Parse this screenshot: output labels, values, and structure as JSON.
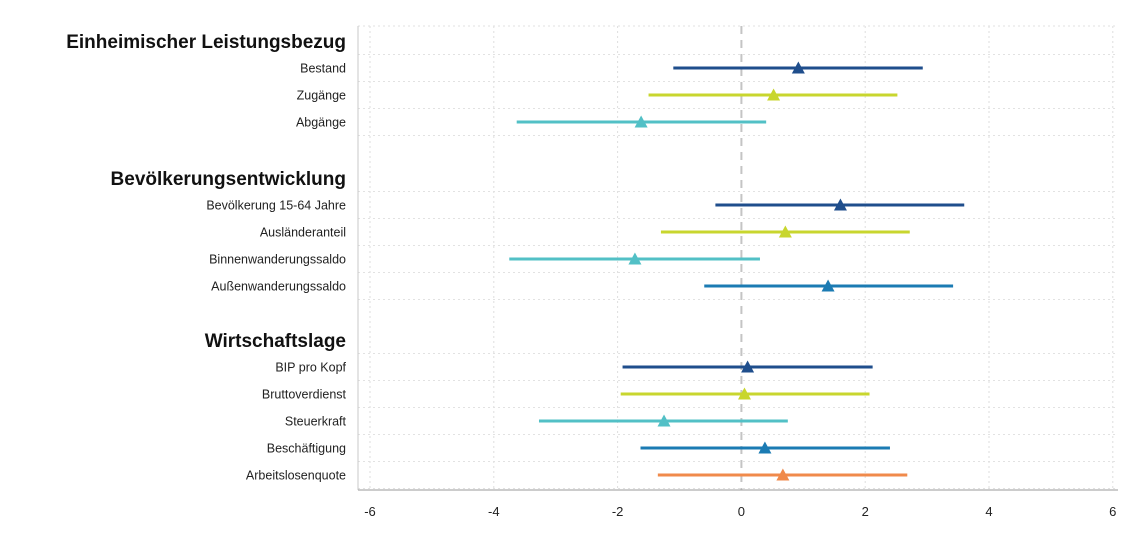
{
  "chart_data": {
    "type": "forest",
    "xlim": [
      -6.2,
      6.2
    ],
    "x_ticks": [
      -6,
      -4,
      -2,
      0,
      2,
      4,
      6
    ],
    "x_tick_labels": [
      "-6",
      "-4",
      "-2",
      "0",
      "2",
      "4",
      "6"
    ],
    "reference_line": 0,
    "grid": true,
    "colors": [
      "#1f4e8c",
      "#c8d62e",
      "#52c0c6",
      "#1b7bb3",
      "#f08a4b"
    ],
    "groups": [
      {
        "title": "Einheimischer Leistungsbezug",
        "rows": [
          {
            "label": "Bestand",
            "estimate": 0.92,
            "lower": -1.1,
            "upper": 2.93,
            "color_index": 0
          },
          {
            "label": "Zugänge",
            "estimate": 0.52,
            "lower": -1.5,
            "upper": 2.52,
            "color_index": 1
          },
          {
            "label": "Abgänge",
            "estimate": -1.62,
            "lower": -3.63,
            "upper": 0.4,
            "color_index": 2
          }
        ]
      },
      {
        "title": "Bevölkerungsentwicklung",
        "rows": [
          {
            "label": "Bevölkerung 15-64 Jahre",
            "estimate": 1.6,
            "lower": -0.42,
            "upper": 3.6,
            "color_index": 0
          },
          {
            "label": "Ausländeranteil",
            "estimate": 0.71,
            "lower": -1.3,
            "upper": 2.72,
            "color_index": 1
          },
          {
            "label": "Binnenwanderungssaldo",
            "estimate": -1.72,
            "lower": -3.75,
            "upper": 0.3,
            "color_index": 2
          },
          {
            "label": "Außenwanderungssaldo",
            "estimate": 1.4,
            "lower": -0.6,
            "upper": 3.42,
            "color_index": 3
          }
        ]
      },
      {
        "title": "Wirtschaftslage",
        "rows": [
          {
            "label": "BIP pro Kopf",
            "estimate": 0.1,
            "lower": -1.92,
            "upper": 2.12,
            "color_index": 0
          },
          {
            "label": "Bruttoverdienst",
            "estimate": 0.05,
            "lower": -1.95,
            "upper": 2.07,
            "color_index": 1
          },
          {
            "label": "Steuerkraft",
            "estimate": -1.25,
            "lower": -3.27,
            "upper": 0.75,
            "color_index": 2
          },
          {
            "label": "Beschäftigung",
            "estimate": 0.38,
            "lower": -1.63,
            "upper": 2.4,
            "color_index": 3
          },
          {
            "label": "Arbeitslosenquote",
            "estimate": 0.67,
            "lower": -1.35,
            "upper": 2.68,
            "color_index": 4
          }
        ]
      }
    ]
  }
}
